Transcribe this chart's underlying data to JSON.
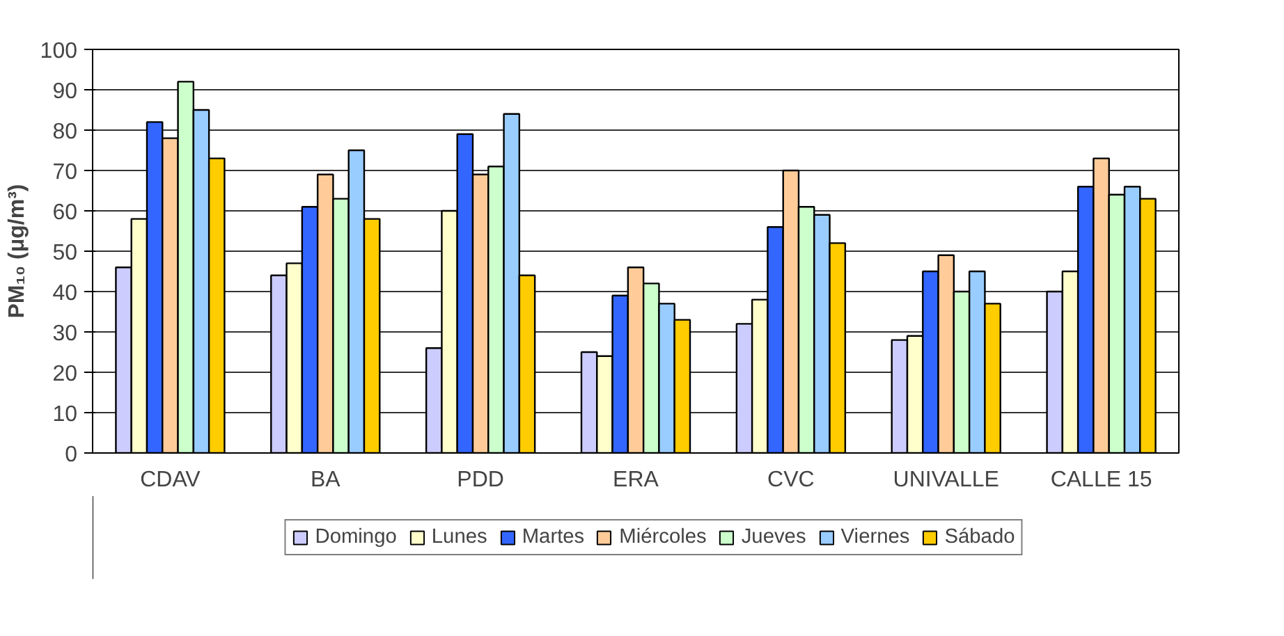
{
  "chart_data": {
    "type": "bar",
    "ylabel": "PM₁₀ (μg/m³)",
    "categories": [
      "CDAV",
      "BA",
      "PDD",
      "ERA",
      "CVC",
      "UNIVALLE",
      "CALLE 15"
    ],
    "series": [
      {
        "name": "Domingo",
        "color": "#ccccff",
        "values": [
          46,
          44,
          26,
          25,
          32,
          28,
          40
        ]
      },
      {
        "name": "Lunes",
        "color": "#ffffcc",
        "values": [
          58,
          47,
          60,
          24,
          38,
          29,
          45
        ]
      },
      {
        "name": "Martes",
        "color": "#3366ff",
        "values": [
          82,
          61,
          79,
          39,
          56,
          45,
          66
        ]
      },
      {
        "name": "Miércoles",
        "color": "#ffcc99",
        "values": [
          78,
          69,
          69,
          46,
          70,
          49,
          73
        ]
      },
      {
        "name": "Jueves",
        "color": "#ccffcc",
        "values": [
          92,
          63,
          71,
          42,
          61,
          40,
          64
        ]
      },
      {
        "name": "Viernes",
        "color": "#99ccff",
        "values": [
          85,
          75,
          84,
          37,
          59,
          45,
          66
        ]
      },
      {
        "name": "Sábado",
        "color": "#ffcc00",
        "values": [
          73,
          58,
          44,
          33,
          52,
          37,
          63
        ]
      }
    ],
    "ylim": [
      0,
      100
    ],
    "yticks": [
      0,
      10,
      20,
      30,
      40,
      50,
      60,
      70,
      80,
      90,
      100
    ],
    "grid": "y",
    "legend": "bottom"
  }
}
